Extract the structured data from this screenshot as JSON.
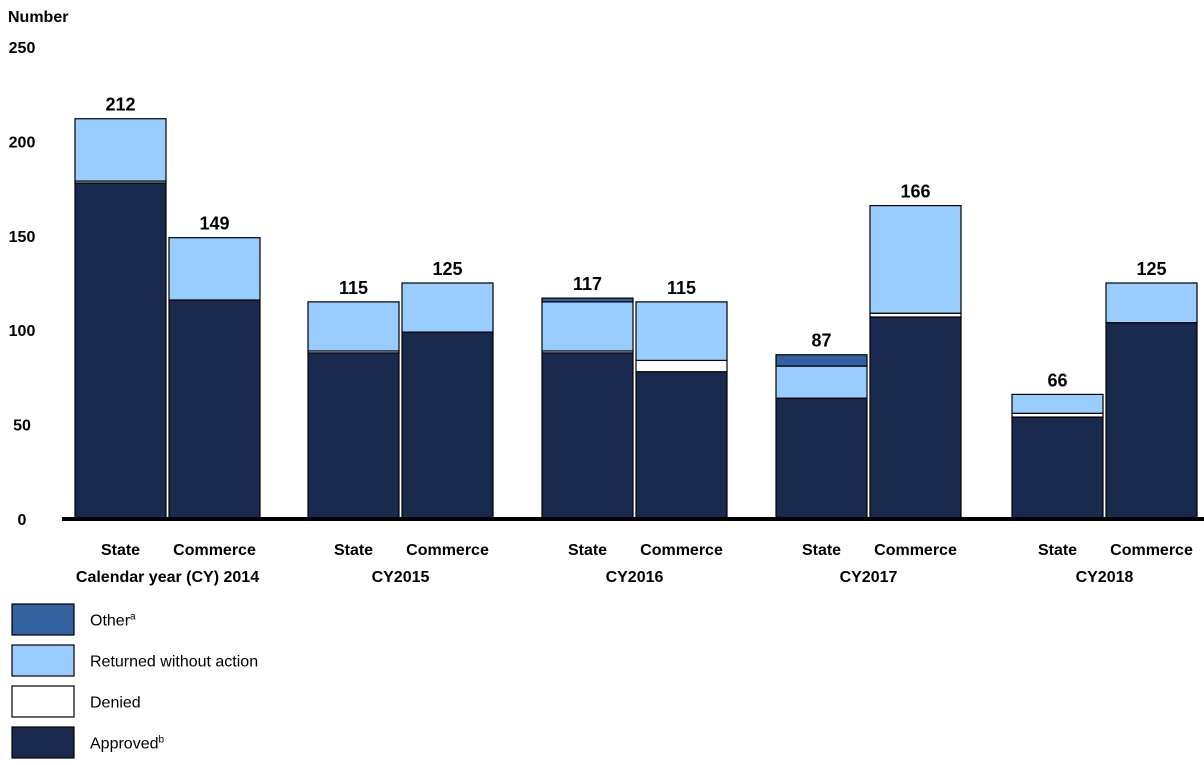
{
  "chart_data": {
    "type": "bar",
    "stacked": true,
    "ylabel": "Number",
    "ylim": [
      0,
      250
    ],
    "yticks": [
      0,
      50,
      100,
      150,
      200,
      250
    ],
    "groups": [
      {
        "label": "Calendar year (CY) 2014",
        "bars": [
          {
            "label": "State",
            "total": "212",
            "values": {
              "Approved": 178,
              "Denied": 1,
              "Returned without action": 33,
              "Other": 0
            }
          },
          {
            "label": "Commerce",
            "total": "149",
            "values": {
              "Approved": 116,
              "Denied": 0,
              "Returned without action": 33,
              "Other": 0
            }
          }
        ]
      },
      {
        "label": "CY2015",
        "bars": [
          {
            "label": "State",
            "total": "115",
            "values": {
              "Approved": 88,
              "Denied": 1,
              "Returned without action": 26,
              "Other": 0
            }
          },
          {
            "label": "Commerce",
            "total": "125",
            "values": {
              "Approved": 99,
              "Denied": 0,
              "Returned without action": 26,
              "Other": 0
            }
          }
        ]
      },
      {
        "label": "CY2016",
        "bars": [
          {
            "label": "State",
            "total": "117",
            "values": {
              "Approved": 88,
              "Denied": 1,
              "Returned without action": 26,
              "Other": 2
            }
          },
          {
            "label": "Commerce",
            "total": "115",
            "values": {
              "Approved": 78,
              "Denied": 6,
              "Returned without action": 31,
              "Other": 0
            }
          }
        ]
      },
      {
        "label": "CY2017",
        "bars": [
          {
            "label": "State",
            "total": "87",
            "values": {
              "Approved": 64,
              "Denied": 0,
              "Returned without action": 17,
              "Other": 6
            }
          },
          {
            "label": "Commerce",
            "total": "166",
            "values": {
              "Approved": 107,
              "Denied": 2,
              "Returned without action": 57,
              "Other": 0
            }
          }
        ]
      },
      {
        "label": "CY2018",
        "bars": [
          {
            "label": "State",
            "total": "66",
            "values": {
              "Approved": 54,
              "Denied": 2,
              "Returned without action": 10,
              "Other": 0
            }
          },
          {
            "label": "Commerce",
            "total": "125",
            "values": {
              "Approved": 104,
              "Denied": 0,
              "Returned without action": 21,
              "Other": 0
            }
          }
        ]
      }
    ],
    "series": [
      {
        "name": "Approved",
        "sup": "b",
        "color": "#1a2a4f"
      },
      {
        "name": "Denied",
        "sup": "",
        "color": "#ffffff"
      },
      {
        "name": "Returned without action",
        "sup": "",
        "color": "#99ccff"
      },
      {
        "name": "Other",
        "sup": "a",
        "color": "#33609e"
      }
    ],
    "legend_order": [
      "Other",
      "Returned without action",
      "Denied",
      "Approved"
    ],
    "legend_placement": "bottom-left",
    "grid": false
  }
}
